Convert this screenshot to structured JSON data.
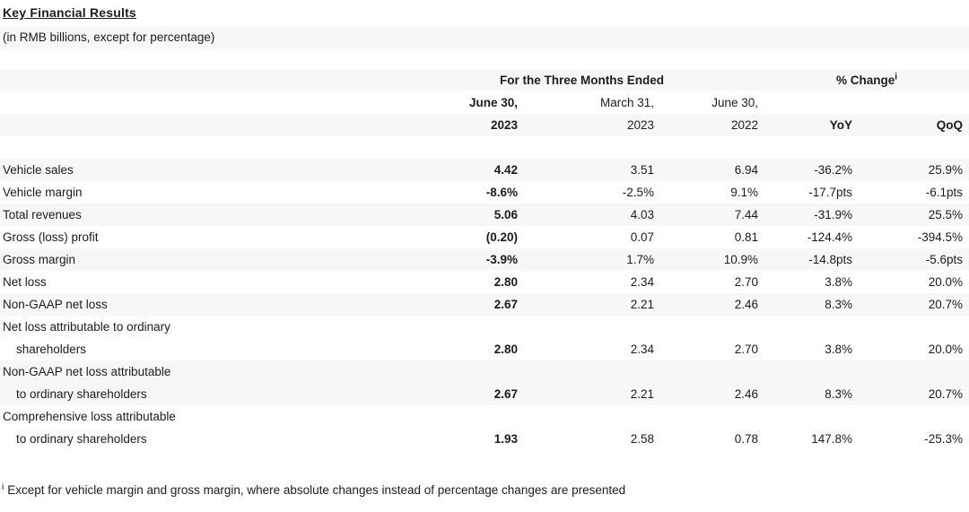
{
  "title": "Key Financial Results",
  "subtitle": "(in RMB billions, except for percentage)",
  "colors": {
    "stripe": "#f7f7f7",
    "text": "#1c1c1c"
  },
  "table": {
    "group_headers": {
      "periods": "For the Three Months Ended",
      "change": "% Change",
      "change_superscript": "i"
    },
    "columns": [
      {
        "line1": "June 30,",
        "line2": "2023"
      },
      {
        "line1": "March 31,",
        "line2": "2023"
      },
      {
        "line1": "June 30,",
        "line2": "2022"
      },
      {
        "line1": "",
        "line2": "YoY"
      },
      {
        "line1": "",
        "line2": "QoQ"
      }
    ],
    "rows": [
      {
        "label_lines": [
          "Vehicle sales"
        ],
        "values": [
          "4.42",
          "3.51",
          "6.94",
          "-36.2%",
          "25.9%"
        ]
      },
      {
        "label_lines": [
          "Vehicle margin"
        ],
        "values": [
          "-8.6%",
          "-2.5%",
          "9.1%",
          "-17.7pts",
          "-6.1pts"
        ]
      },
      {
        "label_lines": [
          "Total revenues"
        ],
        "values": [
          "5.06",
          "4.03",
          "7.44",
          "-31.9%",
          "25.5%"
        ]
      },
      {
        "label_lines": [
          "Gross (loss) profit"
        ],
        "values": [
          "(0.20)",
          "0.07",
          "0.81",
          "-124.4%",
          "-394.5%"
        ]
      },
      {
        "label_lines": [
          "Gross margin"
        ],
        "values": [
          "-3.9%",
          "1.7%",
          "10.9%",
          "-14.8pts",
          "-5.6pts"
        ]
      },
      {
        "label_lines": [
          "Net loss"
        ],
        "values": [
          "2.80",
          "2.34",
          "2.70",
          "3.8%",
          "20.0%"
        ]
      },
      {
        "label_lines": [
          "Non-GAAP net loss"
        ],
        "values": [
          "2.67",
          "2.21",
          "2.46",
          "8.3%",
          "20.7%"
        ]
      },
      {
        "label_lines": [
          "Net loss attributable to ordinary",
          "shareholders"
        ],
        "values": [
          "2.80",
          "2.34",
          "2.70",
          "3.8%",
          "20.0%"
        ]
      },
      {
        "label_lines": [
          "Non-GAAP net loss attributable",
          "to ordinary shareholders"
        ],
        "values": [
          "2.67",
          "2.21",
          "2.46",
          "8.3%",
          "20.7%"
        ]
      },
      {
        "label_lines": [
          "Comprehensive loss attributable",
          "to ordinary shareholders"
        ],
        "values": [
          "1.93",
          "2.58",
          "0.78",
          "147.8%",
          "-25.3%"
        ]
      }
    ]
  },
  "footnote": {
    "superscript": "i",
    "text": "Except for vehicle margin and gross margin, where absolute changes instead of percentage changes are presented"
  }
}
